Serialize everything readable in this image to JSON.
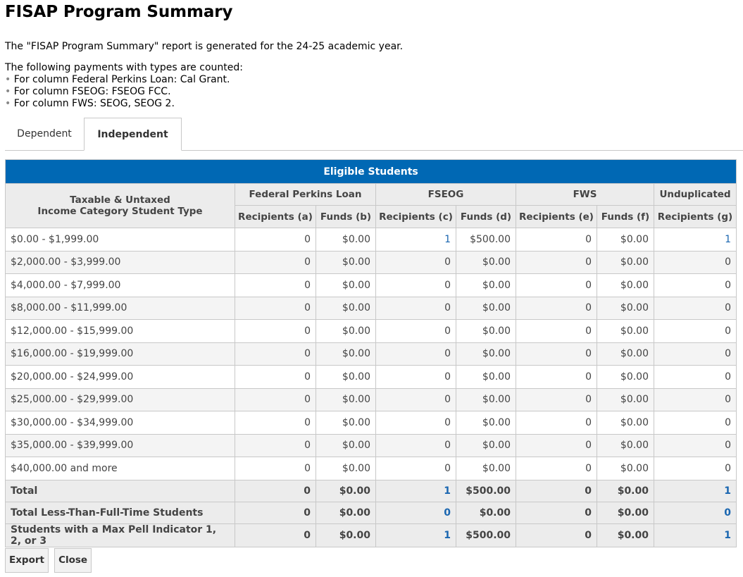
{
  "title": "FISAP Program Summary",
  "intro": {
    "line1": "The \"FISAP Program Summary\" report is generated for the 24-25 academic year.",
    "line2": "The following payments with types are counted:",
    "bullets": [
      "For column Federal Perkins Loan: Cal Grant.",
      "For column FSEOG: FSEOG FCC.",
      "For column FWS: SEOG, SEOG 2."
    ],
    "bullet_char": "•"
  },
  "tabs": [
    {
      "label": "Dependent",
      "active": false
    },
    {
      "label": "Independent",
      "active": true
    }
  ],
  "table": {
    "caption": "Eligible Students",
    "row_header_line1": "Taxable & Untaxed",
    "row_header_line2": "Income Category Student Type",
    "groups": [
      "Federal Perkins Loan",
      "FSEOG",
      "FWS",
      "Unduplicated"
    ],
    "columns": [
      "Recipients (a)",
      "Funds (b)",
      "Recipients (c)",
      "Funds (d)",
      "Recipients (e)",
      "Funds (f)",
      "Recipients (g)"
    ],
    "rows": [
      {
        "label": "$0.00 - $1,999.00",
        "values": [
          "0",
          "$0.00",
          "1",
          "$500.00",
          "0",
          "$0.00",
          "1"
        ]
      },
      {
        "label": "$2,000.00 - $3,999.00",
        "values": [
          "0",
          "$0.00",
          "0",
          "$0.00",
          "0",
          "$0.00",
          "0"
        ]
      },
      {
        "label": "$4,000.00 - $7,999.00",
        "values": [
          "0",
          "$0.00",
          "0",
          "$0.00",
          "0",
          "$0.00",
          "0"
        ]
      },
      {
        "label": "$8,000.00 - $11,999.00",
        "values": [
          "0",
          "$0.00",
          "0",
          "$0.00",
          "0",
          "$0.00",
          "0"
        ]
      },
      {
        "label": "$12,000.00 - $15,999.00",
        "values": [
          "0",
          "$0.00",
          "0",
          "$0.00",
          "0",
          "$0.00",
          "0"
        ]
      },
      {
        "label": "$16,000.00 - $19,999.00",
        "values": [
          "0",
          "$0.00",
          "0",
          "$0.00",
          "0",
          "$0.00",
          "0"
        ]
      },
      {
        "label": "$20,000.00 - $24,999.00",
        "values": [
          "0",
          "$0.00",
          "0",
          "$0.00",
          "0",
          "$0.00",
          "0"
        ]
      },
      {
        "label": "$25,000.00 - $29,999.00",
        "values": [
          "0",
          "$0.00",
          "0",
          "$0.00",
          "0",
          "$0.00",
          "0"
        ]
      },
      {
        "label": "$30,000.00 - $34,999.00",
        "values": [
          "0",
          "$0.00",
          "0",
          "$0.00",
          "0",
          "$0.00",
          "0"
        ]
      },
      {
        "label": "$35,000.00 - $39,999.00",
        "values": [
          "0",
          "$0.00",
          "0",
          "$0.00",
          "0",
          "$0.00",
          "0"
        ]
      },
      {
        "label": "$40,000.00 and more",
        "values": [
          "0",
          "$0.00",
          "0",
          "$0.00",
          "0",
          "$0.00",
          "0"
        ]
      }
    ],
    "summary_rows": [
      {
        "label": "Total",
        "values": [
          "0",
          "$0.00",
          "1",
          "$500.00",
          "0",
          "$0.00",
          "1"
        ]
      },
      {
        "label": "Total Less-Than-Full-Time Students",
        "values": [
          "0",
          "$0.00",
          "0",
          "$0.00",
          "0",
          "$0.00",
          "0"
        ]
      },
      {
        "label": "Students with a Max Pell Indicator 1, 2, or 3",
        "values": [
          "0",
          "$0.00",
          "1",
          "$500.00",
          "0",
          "$0.00",
          "1"
        ]
      }
    ]
  },
  "buttons": {
    "export": "Export",
    "close": "Close"
  },
  "colors": {
    "header_blue": "#0068b4",
    "link_blue": "#1a66b0",
    "header_gray": "#ececec"
  }
}
